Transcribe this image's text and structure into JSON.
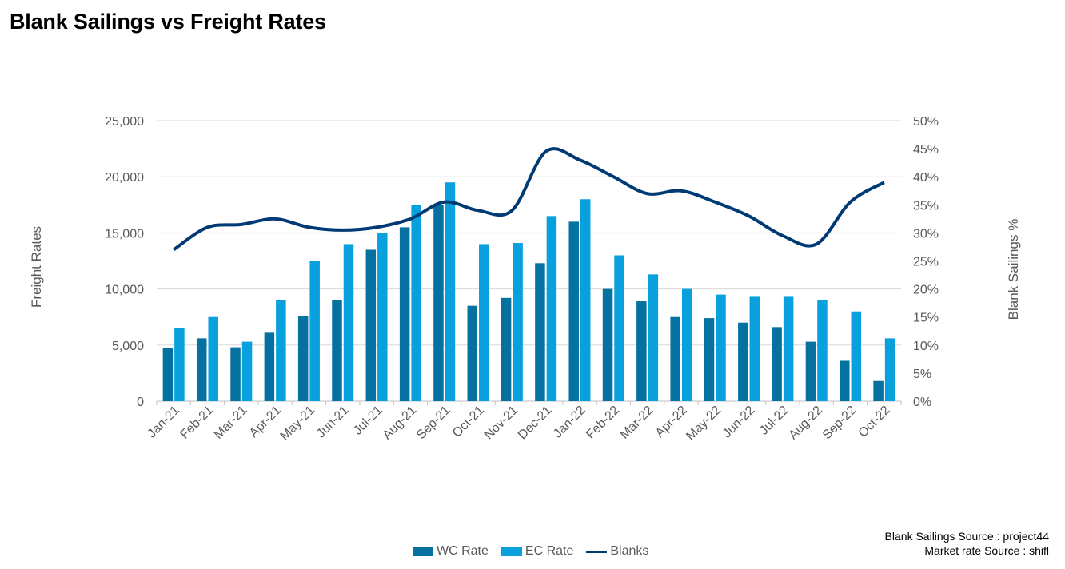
{
  "title": "Blank Sailings vs Freight Rates",
  "sources": [
    "Blank Sailings Source : project44",
    "Market rate Source : shifl"
  ],
  "colors": {
    "wc": "#0571A0",
    "ec": "#08A0DD",
    "blanks": "#003A75",
    "grid": "#D9D9D9"
  },
  "chart_data": {
    "type": "bar",
    "title": "Blank Sailings vs Freight Rates",
    "xlabel": "",
    "ylabel": "Freight Rates",
    "y2label": "Blank Sailings %",
    "ylim": [
      0,
      25000
    ],
    "y2lim": [
      0,
      50
    ],
    "grid": true,
    "legend_position": "bottom",
    "categories": [
      "Jan-21",
      "Feb-21",
      "Mar-21",
      "Apr-21",
      "May-21",
      "Jun-21",
      "Jul-21",
      "Aug-21",
      "Sep-21",
      "Oct-21",
      "Nov-21",
      "Dec-21",
      "Jan-22",
      "Feb-22",
      "Mar-22",
      "Apr-22",
      "May-22",
      "Jun-22",
      "Jul-22",
      "Aug-22",
      "Sep-22",
      "Oct-22"
    ],
    "y_ticks": [
      "0",
      "5,000",
      "10,000",
      "15,000",
      "20,000",
      "25,000"
    ],
    "y2_ticks": [
      "0%",
      "5%",
      "10%",
      "15%",
      "20%",
      "25%",
      "30%",
      "35%",
      "40%",
      "45%",
      "50%"
    ],
    "series": [
      {
        "name": "WC Rate",
        "type": "bar",
        "axis": "left",
        "values": [
          4700,
          5600,
          4800,
          6100,
          7600,
          9000,
          13500,
          15500,
          17500,
          8500,
          9200,
          12300,
          16000,
          10000,
          8900,
          7500,
          7400,
          7000,
          6600,
          5300,
          3600,
          1800
        ]
      },
      {
        "name": "EC Rate",
        "type": "bar",
        "axis": "left",
        "values": [
          6500,
          7500,
          5300,
          9000,
          12500,
          14000,
          15000,
          17500,
          19500,
          14000,
          14100,
          16500,
          18000,
          13000,
          11300,
          10000,
          9500,
          9300,
          9300,
          9000,
          8000,
          5600
        ]
      },
      {
        "name": "Blanks",
        "type": "line",
        "axis": "right",
        "values": [
          27,
          31,
          31.5,
          32.5,
          31,
          30.5,
          31,
          32.5,
          35.5,
          34,
          34,
          44.5,
          43,
          40,
          37,
          37.5,
          35.5,
          33,
          29.5,
          28,
          35.5,
          39
        ]
      }
    ]
  }
}
